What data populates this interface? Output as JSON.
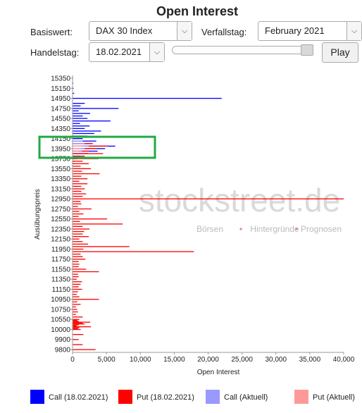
{
  "app": {
    "title": "Open Interest"
  },
  "controls": {
    "basiswert_label": "Basiswert:",
    "basiswert_value": "DAX 30 Index",
    "verfallstag_label": "Verfallstag:",
    "verfallstag_value": "February 2021",
    "handelstag_label": "Handelstag:",
    "handelstag_value": "18.02.2021",
    "slider_value": 1.0,
    "play_label": "Play"
  },
  "watermark": {
    "main": "stockstreet.de",
    "tagline_parts": [
      "Börsen",
      "Hintergründe",
      "Prognosen"
    ]
  },
  "colors": {
    "call": "#0000ff",
    "put": "#ff0000",
    "call_current": "#9999ff",
    "put_current": "#ff9999",
    "highlight": "#22aa44"
  },
  "legend": [
    {
      "label": "Call (18.02.2021)",
      "color": "#0000ff"
    },
    {
      "label": "Put (18.02.2021)",
      "color": "#ff0000"
    },
    {
      "label": "Call (Aktuell)",
      "color": "#9999ff"
    },
    {
      "label": "Put (Aktuell)",
      "color": "#ff9999"
    }
  ],
  "chart_data": {
    "type": "bar",
    "orientation": "horizontal",
    "xlabel": "Open Interest",
    "ylabel": "Ausübungspreis",
    "xlim": [
      0,
      40000
    ],
    "ylim": [
      9800,
      15350
    ],
    "x_ticks": [
      "0",
      "5,000",
      "10,000",
      "15,000",
      "20,000",
      "25,000",
      "30,000",
      "35,000",
      "40,000"
    ],
    "y_ticks": [
      "15350",
      "15150",
      "14950",
      "14750",
      "14550",
      "14350",
      "14150",
      "13950",
      "13750",
      "13550",
      "13350",
      "13150",
      "12950",
      "12750",
      "12550",
      "12350",
      "12150",
      "11950",
      "11750",
      "11550",
      "11350",
      "11150",
      "10950",
      "10750",
      "10550",
      "10000",
      "9900",
      "9800"
    ],
    "grid": false,
    "legend_position": "bottom",
    "highlight_range": [
      13850,
      14100
    ],
    "series": [
      {
        "name": "Call (18.02.2021)",
        "points": [
          {
            "strike": 15350,
            "value": 80
          },
          {
            "strike": 15250,
            "value": 100
          },
          {
            "strike": 15150,
            "value": 150
          },
          {
            "strike": 15050,
            "value": 250
          },
          {
            "strike": 14950,
            "value": 22000
          },
          {
            "strike": 14850,
            "value": 1800
          },
          {
            "strike": 14800,
            "value": 1200
          },
          {
            "strike": 14750,
            "value": 6800
          },
          {
            "strike": 14700,
            "value": 900
          },
          {
            "strike": 14650,
            "value": 2600
          },
          {
            "strike": 14600,
            "value": 1500
          },
          {
            "strike": 14550,
            "value": 2200
          },
          {
            "strike": 14500,
            "value": 5600
          },
          {
            "strike": 14450,
            "value": 1100
          },
          {
            "strike": 14400,
            "value": 2500
          },
          {
            "strike": 14350,
            "value": 1800
          },
          {
            "strike": 14300,
            "value": 4200
          },
          {
            "strike": 14250,
            "value": 3200
          },
          {
            "strike": 14200,
            "value": 2200
          },
          {
            "strike": 14150,
            "value": 1500
          },
          {
            "strike": 14100,
            "value": 3500
          },
          {
            "strike": 14050,
            "value": 2800
          },
          {
            "strike": 14000,
            "value": 6300
          },
          {
            "strike": 13950,
            "value": 4800
          },
          {
            "strike": 13900,
            "value": 3700
          },
          {
            "strike": 13850,
            "value": 2300
          },
          {
            "strike": 13800,
            "value": 1200
          },
          {
            "strike": 13750,
            "value": 700
          },
          {
            "strike": 13700,
            "value": 400
          },
          {
            "strike": 13650,
            "value": 300
          }
        ]
      },
      {
        "name": "Put (18.02.2021)",
        "points": [
          {
            "strike": 14050,
            "value": 3000
          },
          {
            "strike": 14000,
            "value": 5200
          },
          {
            "strike": 13950,
            "value": 3500
          },
          {
            "strike": 13900,
            "value": 2400
          },
          {
            "strike": 13850,
            "value": 4500
          },
          {
            "strike": 13800,
            "value": 1800
          },
          {
            "strike": 13750,
            "value": 3800
          },
          {
            "strike": 13700,
            "value": 1500
          },
          {
            "strike": 13650,
            "value": 2400
          },
          {
            "strike": 13600,
            "value": 1200
          },
          {
            "strike": 13550,
            "value": 2700
          },
          {
            "strike": 13500,
            "value": 1400
          },
          {
            "strike": 13450,
            "value": 4000
          },
          {
            "strike": 13400,
            "value": 1300
          },
          {
            "strike": 13350,
            "value": 2200
          },
          {
            "strike": 13300,
            "value": 1000
          },
          {
            "strike": 13250,
            "value": 2200
          },
          {
            "strike": 13200,
            "value": 1300
          },
          {
            "strike": 13150,
            "value": 1800
          },
          {
            "strike": 13100,
            "value": 1300
          },
          {
            "strike": 13050,
            "value": 2000
          },
          {
            "strike": 13000,
            "value": 1500
          },
          {
            "strike": 12950,
            "value": 40000
          },
          {
            "strike": 12900,
            "value": 1200
          },
          {
            "strike": 12850,
            "value": 1300
          },
          {
            "strike": 12800,
            "value": 800
          },
          {
            "strike": 12750,
            "value": 2800
          },
          {
            "strike": 12700,
            "value": 1000
          },
          {
            "strike": 12650,
            "value": 1600
          },
          {
            "strike": 12600,
            "value": 900
          },
          {
            "strike": 12550,
            "value": 5100
          },
          {
            "strike": 12500,
            "value": 1100
          },
          {
            "strike": 12450,
            "value": 7400
          },
          {
            "strike": 12400,
            "value": 1500
          },
          {
            "strike": 12350,
            "value": 2500
          },
          {
            "strike": 12300,
            "value": 1700
          },
          {
            "strike": 12250,
            "value": 1500
          },
          {
            "strike": 12200,
            "value": 2400
          },
          {
            "strike": 12150,
            "value": 1000
          },
          {
            "strike": 12100,
            "value": 1500
          },
          {
            "strike": 12050,
            "value": 2300
          },
          {
            "strike": 12000,
            "value": 8400
          },
          {
            "strike": 11950,
            "value": 1600
          },
          {
            "strike": 11900,
            "value": 17900
          },
          {
            "strike": 11850,
            "value": 1200
          },
          {
            "strike": 11800,
            "value": 1500
          },
          {
            "strike": 11750,
            "value": 1900
          },
          {
            "strike": 11700,
            "value": 900
          },
          {
            "strike": 11650,
            "value": 1000
          },
          {
            "strike": 11600,
            "value": 900
          },
          {
            "strike": 11550,
            "value": 2000
          },
          {
            "strike": 11500,
            "value": 3900
          },
          {
            "strike": 11450,
            "value": 800
          },
          {
            "strike": 11400,
            "value": 900
          },
          {
            "strike": 11350,
            "value": 600
          },
          {
            "strike": 11300,
            "value": 1400
          },
          {
            "strike": 11250,
            "value": 1200
          },
          {
            "strike": 11200,
            "value": 900
          },
          {
            "strike": 11150,
            "value": 1400
          },
          {
            "strike": 11100,
            "value": 800
          },
          {
            "strike": 11050,
            "value": 600
          },
          {
            "strike": 11000,
            "value": 1000
          },
          {
            "strike": 10950,
            "value": 3900
          },
          {
            "strike": 10900,
            "value": 700
          },
          {
            "strike": 10850,
            "value": 1200
          },
          {
            "strike": 10800,
            "value": 500
          },
          {
            "strike": 10750,
            "value": 700
          },
          {
            "strike": 10700,
            "value": 800
          },
          {
            "strike": 10650,
            "value": 500
          },
          {
            "strike": 10600,
            "value": 1500
          },
          {
            "strike": 10550,
            "value": 1000
          },
          {
            "strike": 10500,
            "value": 700
          },
          {
            "strike": 10450,
            "value": 900
          },
          {
            "strike": 10400,
            "value": 2600
          },
          {
            "strike": 10350,
            "value": 1500
          },
          {
            "strike": 10300,
            "value": 1800
          },
          {
            "strike": 10250,
            "value": 900
          },
          {
            "strike": 10200,
            "value": 600
          },
          {
            "strike": 10150,
            "value": 2700
          },
          {
            "strike": 10100,
            "value": 1000
          },
          {
            "strike": 10050,
            "value": 800
          },
          {
            "strike": 10000,
            "value": 1200
          },
          {
            "strike": 9950,
            "value": 1600
          },
          {
            "strike": 9900,
            "value": 900
          },
          {
            "strike": 9850,
            "value": 1500
          },
          {
            "strike": 9800,
            "value": 3400
          }
        ]
      },
      {
        "name": "Call (Aktuell)",
        "points": [
          {
            "strike": 14100,
            "value": 1500
          },
          {
            "strike": 14050,
            "value": 1800
          },
          {
            "strike": 14000,
            "value": 2400
          },
          {
            "strike": 13950,
            "value": 1800
          },
          {
            "strike": 13900,
            "value": 1400
          }
        ]
      },
      {
        "name": "Put (Aktuell)",
        "points": [
          {
            "strike": 14000,
            "value": 1500
          },
          {
            "strike": 13950,
            "value": 1200
          },
          {
            "strike": 13900,
            "value": 900
          }
        ]
      }
    ]
  }
}
